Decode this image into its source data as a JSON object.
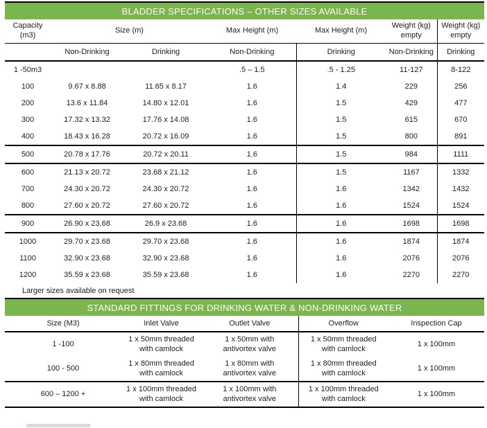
{
  "colors": {
    "banner_green": "#7AB64D",
    "rule_black": "#000000",
    "text": "#1C1C1C"
  },
  "table1": {
    "title": "BLADDER SPECIFICATIONS – OTHER SIZES AVAILABLE",
    "headers": {
      "capacity": "Capacity\n(m3)",
      "size": "Size (m)",
      "max_height_nd": "Max Height (m)",
      "max_height_d": "Max Height (m)",
      "weight_nd": "Weight (kg)\nempty",
      "weight_d": "Weight (kg)\nempty"
    },
    "subheaders": [
      "",
      "Non-Drinking",
      "Drinking",
      "Non-Drinking",
      "Drinking",
      "Non-Drinking",
      "Drinking"
    ],
    "rows": [
      [
        "1 -50m3",
        "",
        "",
        ".5 – 1.5",
        ".5 - 1.25",
        "11-127",
        "8-122"
      ],
      [
        "100",
        "9.67 x 8.88",
        "11.65 x 8.17",
        "1.6",
        "1.4",
        "229",
        "256"
      ],
      [
        "200",
        "13.6 x 11.84",
        "14.80 x 12.01",
        "1.6",
        "1.5",
        "429",
        "477"
      ],
      [
        "300",
        "17.32 x 13.32",
        "17.76 x 14.08",
        "1.6",
        "1.5",
        "615",
        "670"
      ],
      [
        "400",
        "18.43 x 16.28",
        "20.72 x 16.09",
        "1.6",
        "1.5",
        "800",
        "891"
      ],
      [
        "500",
        "20.78 x 17.76",
        "20.72 x 20.11",
        "1.6",
        "1.5",
        "984",
        "1111"
      ],
      [
        "600",
        "21.13 x 20.72",
        "23.68 x 21.12",
        "1.6",
        "1.5",
        "1167",
        "1332"
      ],
      [
        "700",
        "24.30 x 20.72",
        "24.30 x 20.72",
        "1.6",
        "1.6",
        "1342",
        "1432"
      ],
      [
        "800",
        "27.60 x 20.72",
        "27.60 x 20.72",
        "1.6",
        "1.6",
        "1524",
        "1524"
      ],
      [
        "900",
        "26.90 x 23.68",
        "26.9 x 23.68",
        "1.6",
        "1.6",
        "1698",
        "1698"
      ],
      [
        "1000",
        "29.70 x 23.68",
        "29.70 x 23.68",
        "1.6",
        "1.6",
        "1874",
        "1874"
      ],
      [
        "1100",
        "32.90 x 23.68",
        "32.90 x 23.68",
        "1.6",
        "1.6",
        "2076",
        "2076"
      ],
      [
        "1200",
        "35.59 x 23.68",
        "35.59 x 23.68",
        "1.6",
        "1.6",
        "2270",
        "2270"
      ]
    ],
    "separator_before_rows": [
      5,
      6,
      9,
      10
    ],
    "note": "Larger sizes available on request"
  },
  "table2": {
    "title": "STANDARD FITTINGS FOR DRINKING WATER & NON-DRINKING WATER",
    "headers": [
      "Size (M3)",
      "Inlet Valve",
      "Outlet Valve",
      "Overflow",
      "Inspection Cap"
    ],
    "rows": [
      [
        "1 -100",
        "1 x 50mm threaded\nwith camlock",
        "1 x 50mm with\nantivortex valve",
        "1 x 50mm threaded\nwith camlock",
        "1 x 100mm"
      ],
      [
        "100 - 500",
        "1 x 80mm threaded\nwith camlock",
        "1 x 80mm with\nantivortex valve",
        "1 x 80mm threaded\nwith camlock",
        "1 x 100mm"
      ],
      [
        "600 – 1200 +",
        "1 x 100mm threaded\nwith camlock",
        "1 x 100mm with\nantivortex valve",
        "1 x 100mm threaded\nwith camlock",
        "1 x 100mm"
      ]
    ],
    "separator_before_rows": [
      2
    ]
  }
}
